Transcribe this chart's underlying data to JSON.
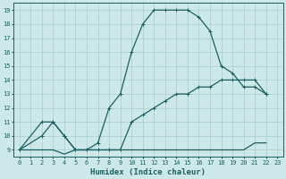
{
  "xlabel": "Humidex (Indice chaleur)",
  "xlim": [
    -0.5,
    23.5
  ],
  "ylim": [
    8.5,
    19.5
  ],
  "xticks": [
    0,
    1,
    2,
    3,
    4,
    5,
    6,
    7,
    8,
    9,
    10,
    11,
    12,
    13,
    14,
    15,
    16,
    17,
    18,
    19,
    20,
    21,
    22,
    23
  ],
  "yticks": [
    9,
    10,
    11,
    12,
    13,
    14,
    15,
    16,
    17,
    18,
    19
  ],
  "bg_color": "#cce8e8",
  "grid_color": "#aacccc",
  "line_color": "#1a6060",
  "line1_x": [
    0,
    2,
    3,
    4,
    5,
    6,
    7,
    8,
    9,
    10,
    11,
    12,
    13,
    14,
    15,
    16,
    17,
    18,
    19,
    20,
    21,
    22
  ],
  "line1_y": [
    9,
    10,
    11,
    10,
    9,
    9,
    9.5,
    12,
    13,
    16,
    18,
    19,
    19,
    19,
    19,
    18.5,
    17.5,
    15,
    14.5,
    13.5,
    13.5,
    13
  ],
  "line2_x": [
    0,
    2,
    3,
    4,
    5,
    6,
    7,
    8,
    9,
    10,
    11,
    12,
    13,
    14,
    15,
    16,
    17,
    18,
    19,
    20,
    21,
    22
  ],
  "line2_y": [
    9,
    11,
    11,
    10,
    9,
    9,
    9,
    9,
    9,
    11,
    11.5,
    12,
    12.5,
    13,
    13,
    13.5,
    13.5,
    14,
    14,
    14,
    14,
    13
  ],
  "line3_x": [
    0,
    2,
    3,
    4,
    5,
    6,
    7,
    8,
    9,
    10,
    11,
    12,
    13,
    14,
    15,
    16,
    17,
    18,
    19,
    20,
    21,
    22
  ],
  "line3_y": [
    9,
    9,
    9,
    8.7,
    9,
    9,
    9,
    9,
    9,
    9,
    9,
    9,
    9,
    9,
    9,
    9,
    9,
    9,
    9,
    9,
    9.5,
    9.5
  ],
  "linewidth": 0.9,
  "markersize": 3.5,
  "tick_fontsize": 5,
  "xlabel_fontsize": 6.5
}
